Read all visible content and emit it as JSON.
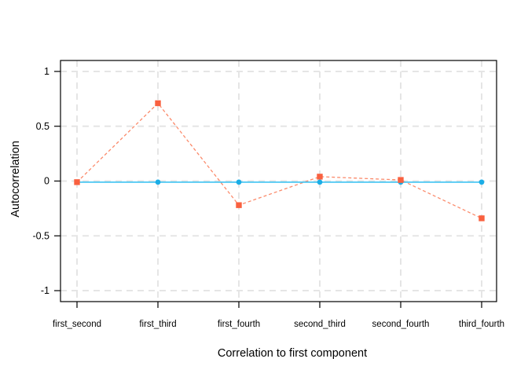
{
  "figure": {
    "background": "#ffffff",
    "border_color": "#000000",
    "text_color": "#000000"
  },
  "chart_data": {
    "type": "line",
    "title": "",
    "xlabel": "Correlation to first component",
    "ylabel": "Autocorrelation",
    "categories": [
      "first_second",
      "first_third",
      "first_fourth",
      "second_third",
      "second_fourth",
      "third_fourth"
    ],
    "series": [
      {
        "name": "red-squares-dashed",
        "marker": "square",
        "line_style": "dashed",
        "marker_color": "#f9603f",
        "line_color": "#fb8a6b",
        "values": [
          -0.01,
          0.71,
          -0.22,
          0.04,
          0.01,
          -0.34
        ]
      },
      {
        "name": "blue-circles-solid",
        "marker": "circle",
        "line_style": "solid",
        "marker_color": "#1bade6",
        "line_color": "#3ec3f2",
        "values": [
          -0.01,
          -0.01,
          -0.01,
          -0.01,
          -0.01,
          -0.01
        ]
      }
    ],
    "yticks": [
      1,
      0.5,
      0,
      -0.5,
      -1
    ],
    "ytick_labels": [
      "1",
      "0.5",
      "0",
      "-0.5",
      "-1"
    ],
    "ylim": [
      -1.1,
      1.1
    ],
    "grid": "dashed",
    "grid_color": "#e5e5e5",
    "legend": "none"
  }
}
